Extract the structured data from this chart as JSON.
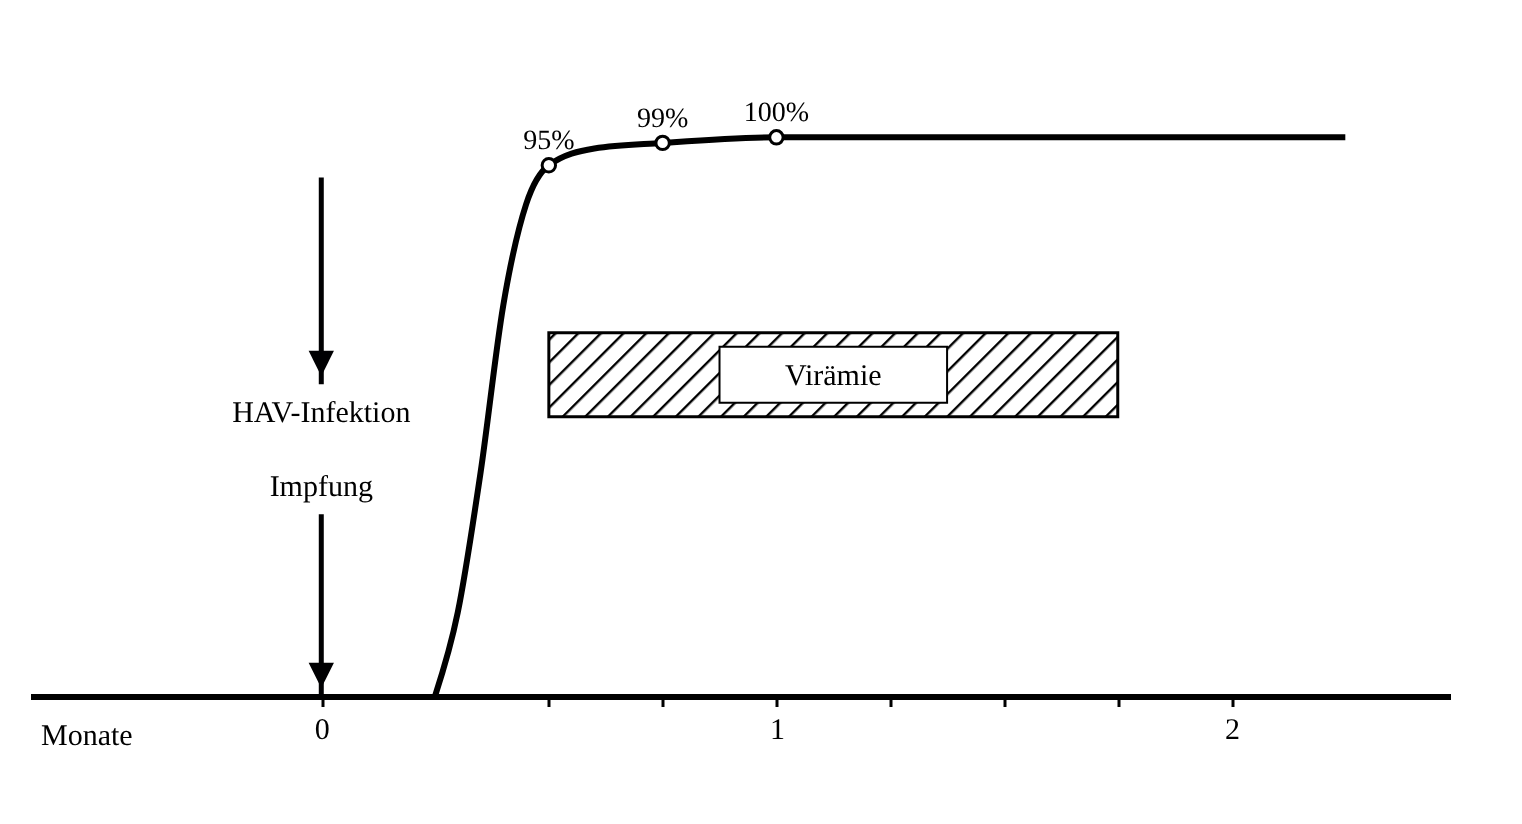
{
  "chart_data": {
    "type": "line",
    "xlabel": "Monate",
    "xlim": [
      -0.64,
      2.48
    ],
    "xticks": [
      0,
      {
        "value": 0.5,
        "label": null
      },
      {
        "value": 0.75,
        "label": null
      },
      1,
      {
        "value": 1.25,
        "label": null
      },
      {
        "value": 1.5,
        "label": null
      },
      {
        "value": 1.75,
        "label": null
      },
      2
    ],
    "tick_labels": "x",
    "grid": false,
    "line_style": "solid",
    "series": [
      {
        "type": "line",
        "color": "#000000",
        "marker": "none",
        "x": [
          0.25,
          0.3,
          0.35,
          0.4,
          0.45,
          0.5,
          0.6,
          0.75,
          1,
          2.25
        ],
        "values": [
          0,
          15,
          40,
          70,
          88,
          95,
          98,
          99,
          100,
          100
        ]
      },
      {
        "type": "scatter",
        "color": "#000000",
        "marker": "circle",
        "x": [
          0.5,
          0.75,
          1
        ],
        "values": [
          95,
          99,
          100
        ],
        "value_labels": [
          "95%",
          "99%",
          "100%"
        ]
      }
    ],
    "ref_lines": [
      {
        "axis": "x",
        "value": 0
      }
    ],
    "bands": [
      {
        "axis": "x",
        "from": 0.5,
        "to": 1.75,
        "label": "Virämie",
        "color": "#000000"
      }
    ],
    "annotations": [
      "HAV-Infektion",
      "Impfung"
    ]
  }
}
